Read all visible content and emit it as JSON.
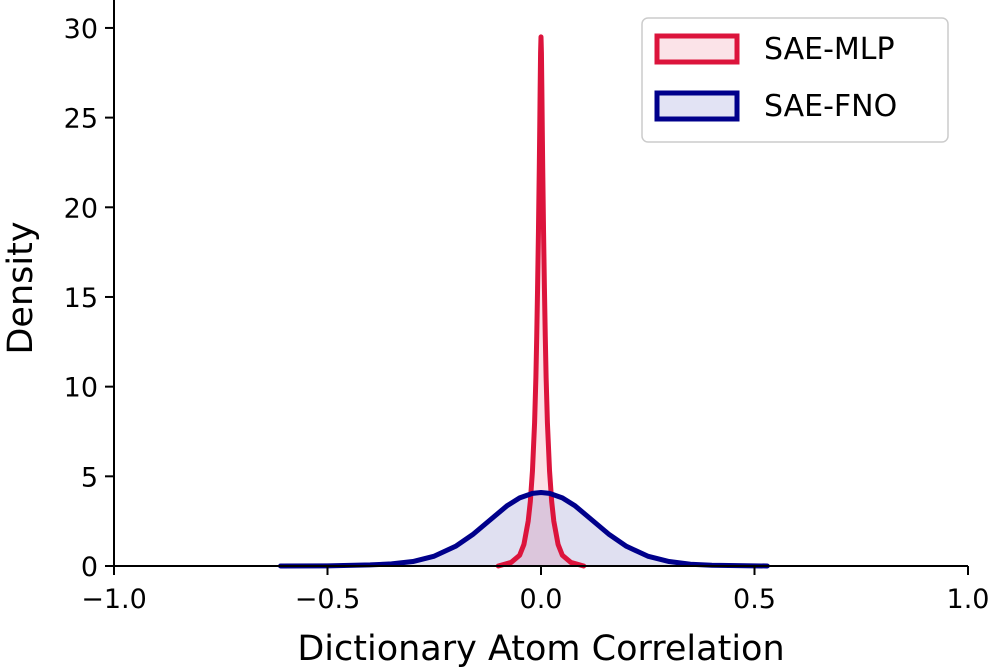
{
  "chart_data": {
    "type": "area",
    "title": "",
    "xlabel": "Dictionary Atom Correlation",
    "ylabel": "Density",
    "xlim": [
      -1.0,
      1.0
    ],
    "ylim": [
      0,
      31
    ],
    "x_ticks": [
      -1.0,
      -0.5,
      0.0,
      0.5,
      1.0
    ],
    "x_tick_labels": [
      "−1.0",
      "−0.5",
      "0.0",
      "0.5",
      "1.0"
    ],
    "y_ticks": [
      0,
      5,
      10,
      15,
      20,
      25,
      30
    ],
    "y_tick_labels": [
      "0",
      "5",
      "10",
      "15",
      "20",
      "25",
      "30"
    ],
    "grid": false,
    "legend_position": "top-right",
    "series": [
      {
        "name": "SAE-MLP",
        "color": "#dc143c",
        "fill": "#fbe3e8",
        "x": [
          -0.1,
          -0.07,
          -0.05,
          -0.04,
          -0.03,
          -0.025,
          -0.02,
          -0.015,
          -0.012,
          -0.01,
          -0.008,
          -0.006,
          -0.004,
          -0.003,
          -0.002,
          -0.001,
          0.0,
          0.001,
          0.002,
          0.003,
          0.004,
          0.006,
          0.008,
          0.01,
          0.012,
          0.015,
          0.02,
          0.025,
          0.03,
          0.04,
          0.05,
          0.07,
          0.1
        ],
        "values": [
          0.0,
          0.2,
          0.6,
          1.2,
          2.5,
          3.6,
          5.3,
          8.0,
          10.5,
          12.8,
          15.5,
          18.6,
          22.2,
          24.3,
          26.6,
          28.6,
          29.5,
          28.6,
          26.6,
          24.3,
          22.2,
          18.6,
          15.5,
          12.8,
          10.5,
          8.0,
          5.3,
          3.6,
          2.5,
          1.2,
          0.6,
          0.2,
          0.0
        ]
      },
      {
        "name": "SAE-FNO",
        "color": "#00008b",
        "fill": "#e2e3f4",
        "x": [
          -0.61,
          -0.5,
          -0.4,
          -0.35,
          -0.3,
          -0.25,
          -0.2,
          -0.16,
          -0.12,
          -0.08,
          -0.05,
          -0.02,
          0.0,
          0.02,
          0.05,
          0.08,
          0.12,
          0.16,
          0.2,
          0.25,
          0.3,
          0.35,
          0.4,
          0.53
        ],
        "values": [
          0.0,
          0.01,
          0.06,
          0.12,
          0.25,
          0.55,
          1.1,
          1.75,
          2.55,
          3.35,
          3.8,
          4.05,
          4.1,
          4.05,
          3.8,
          3.35,
          2.55,
          1.75,
          1.1,
          0.55,
          0.25,
          0.1,
          0.04,
          0.0
        ]
      }
    ]
  }
}
